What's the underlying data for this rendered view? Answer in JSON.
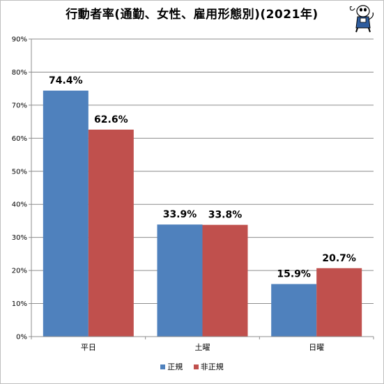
{
  "chart_data": {
    "type": "bar",
    "title": "行動者率(通勤、女性、雇用形態別)(2021年)",
    "categories": [
      "平日",
      "土曜",
      "日曜"
    ],
    "series": [
      {
        "name": "正規",
        "color": "#4f81bd",
        "values": [
          74.4,
          33.9,
          15.9
        ]
      },
      {
        "name": "非正規",
        "color": "#c0504d",
        "values": [
          62.6,
          33.8,
          20.7
        ]
      }
    ],
    "ylim": [
      0,
      90
    ],
    "yticks": [
      "0%",
      "10%",
      "20%",
      "30%",
      "40%",
      "50%",
      "60%",
      "70%",
      "80%",
      "90%"
    ],
    "data_labels": [
      [
        "74.4%",
        "33.9%",
        "15.9%"
      ],
      [
        "62.6%",
        "33.8%",
        "20.7%"
      ]
    ],
    "grid": true,
    "legend": "bottom"
  },
  "mascot_icon": "mascot-character-icon"
}
